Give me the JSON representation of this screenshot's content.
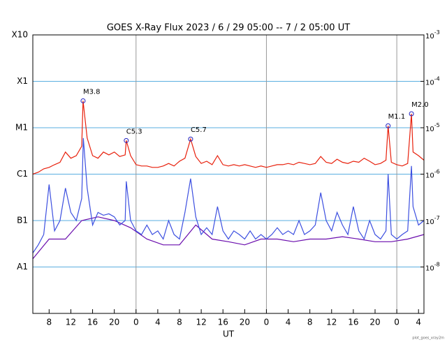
{
  "chart_data": {
    "type": "line",
    "title": "GOES X-Ray Flux   2023 /  6 / 29   05:00 --  7 /  2   05:00   UT",
    "x_label": "UT",
    "footer": "plot_goes_xray2m",
    "ylog": true,
    "ylim": [
      1e-09,
      0.001
    ],
    "yticks": [
      {
        "value": 0.001,
        "label": "X10"
      },
      {
        "value": 0.0001,
        "label": "X1"
      },
      {
        "value": 1e-05,
        "label": "M1"
      },
      {
        "value": 1e-06,
        "label": "C1"
      },
      {
        "value": 1e-07,
        "label": "B1"
      },
      {
        "value": 1e-08,
        "label": "A1"
      }
    ],
    "y2ticks": [
      {
        "value": 0.001,
        "label": "10",
        "exponent": "-3"
      },
      {
        "value": 0.0001,
        "label": "10",
        "exponent": "-4"
      },
      {
        "value": 1e-05,
        "label": "10",
        "exponent": "-5"
      },
      {
        "value": 1e-06,
        "label": "10",
        "exponent": "-6"
      },
      {
        "value": 1e-07,
        "label": "10",
        "exponent": "-7"
      },
      {
        "value": 1e-08,
        "label": "10",
        "exponent": "-8"
      }
    ],
    "grid": true,
    "grid_color": "#5aaee0",
    "xlim": [
      0,
      72
    ],
    "xticks": [
      {
        "value": 3,
        "label": "8"
      },
      {
        "value": 7,
        "label": "12"
      },
      {
        "value": 11,
        "label": "16"
      },
      {
        "value": 15,
        "label": "20"
      },
      {
        "value": 19,
        "label": "0"
      },
      {
        "value": 23,
        "label": "4"
      },
      {
        "value": 27,
        "label": "8"
      },
      {
        "value": 31,
        "label": "12"
      },
      {
        "value": 35,
        "label": "16"
      },
      {
        "value": 39,
        "label": "20"
      },
      {
        "value": 43,
        "label": "0"
      },
      {
        "value": 47,
        "label": "4"
      },
      {
        "value": 51,
        "label": "8"
      },
      {
        "value": 55,
        "label": "12"
      },
      {
        "value": 59,
        "label": "16"
      },
      {
        "value": 63,
        "label": "20"
      },
      {
        "value": 67,
        "label": "0"
      },
      {
        "value": 71,
        "label": "4"
      }
    ],
    "day_lines": [
      19,
      43,
      67
    ],
    "series": [
      {
        "color": "#6a0dad",
        "x": [
          0,
          3,
          6,
          9,
          12,
          15,
          18,
          21,
          24,
          27,
          30,
          33,
          36,
          39,
          42,
          45,
          48,
          51,
          54,
          57,
          60,
          63,
          66,
          69,
          72
        ],
        "values": [
          1.5e-08,
          4e-08,
          4e-08,
          1e-07,
          1.2e-07,
          1e-07,
          7e-08,
          4e-08,
          3e-08,
          3e-08,
          8e-08,
          4e-08,
          3.5e-08,
          3e-08,
          4e-08,
          4e-08,
          3.5e-08,
          4e-08,
          4e-08,
          4.5e-08,
          4e-08,
          3.5e-08,
          3.5e-08,
          4e-08,
          5e-08
        ]
      },
      {
        "color": "#3c4fe0",
        "x": [
          0,
          1,
          2,
          3,
          4,
          5,
          6,
          7,
          8,
          9,
          9.3,
          10,
          11,
          12,
          13,
          14,
          15,
          16,
          17,
          17.2,
          18,
          19,
          20,
          21,
          22,
          23,
          24,
          25,
          26,
          27,
          28,
          29.05,
          30,
          31,
          32,
          33,
          34,
          35,
          36,
          37,
          38,
          39,
          40,
          41,
          42,
          43,
          44,
          45,
          46,
          47,
          48,
          49,
          50,
          51,
          52,
          53,
          54,
          55,
          56,
          57,
          58,
          59,
          60,
          61,
          62,
          63,
          64,
          65,
          65.4,
          66,
          67,
          68,
          69,
          69.7,
          70,
          71,
          72
        ],
        "values": [
          2e-08,
          3e-08,
          5e-08,
          6e-07,
          6e-08,
          1e-07,
          5e-07,
          1.5e-07,
          1e-07,
          3e-07,
          6e-06,
          5e-07,
          8e-08,
          1.5e-07,
          1.3e-07,
          1.4e-07,
          1.2e-07,
          8e-08,
          1e-07,
          7e-07,
          1e-07,
          6e-08,
          5e-08,
          8e-08,
          5e-08,
          6e-08,
          4e-08,
          1e-07,
          5e-08,
          4e-08,
          1.5e-07,
          8e-07,
          1.2e-07,
          5e-08,
          7e-08,
          5e-08,
          2e-07,
          6e-08,
          4e-08,
          6e-08,
          5e-08,
          4e-08,
          6e-08,
          4e-08,
          5e-08,
          4e-08,
          5e-08,
          7e-08,
          5e-08,
          6e-08,
          5e-08,
          1e-07,
          5e-08,
          6e-08,
          8e-08,
          4e-07,
          1e-07,
          6e-08,
          1.5e-07,
          8e-08,
          5e-08,
          2e-07,
          6e-08,
          4e-08,
          1e-07,
          5e-08,
          4e-08,
          6e-08,
          1e-06,
          5e-08,
          4e-08,
          5e-08,
          6e-08,
          1.5e-06,
          2e-07,
          8e-08,
          1e-07
        ]
      },
      {
        "color": "#e8200c",
        "x": [
          0,
          1,
          2,
          3,
          4,
          5,
          6,
          7,
          8,
          9,
          9.25,
          10,
          11,
          12,
          13,
          14,
          15,
          16,
          17,
          17.2,
          18,
          19,
          20,
          21,
          22,
          23,
          24,
          25,
          26,
          27,
          28,
          29.05,
          30,
          31,
          32,
          33,
          34,
          35,
          36,
          37,
          38,
          39,
          40,
          41,
          42,
          43,
          44,
          45,
          46,
          47,
          48,
          49,
          50,
          51,
          52,
          53,
          54,
          55,
          56,
          57,
          58,
          59,
          60,
          61,
          62,
          63,
          64,
          65,
          65.4,
          66,
          67,
          68,
          69,
          69.7,
          70,
          71,
          72
        ],
        "values": [
          1e-06,
          1.1e-06,
          1.3e-06,
          1.4e-06,
          1.6e-06,
          1.8e-06,
          3e-06,
          2.2e-06,
          2.5e-06,
          4e-06,
          3.8e-05,
          6e-06,
          2.5e-06,
          2.2e-06,
          3e-06,
          2.6e-06,
          3e-06,
          2.4e-06,
          2.6e-06,
          5.3e-06,
          2.5e-06,
          1.6e-06,
          1.5e-06,
          1.5e-06,
          1.4e-06,
          1.4e-06,
          1.5e-06,
          1.7e-06,
          1.5e-06,
          1.9e-06,
          2.2e-06,
          5.7e-06,
          2.4e-06,
          1.7e-06,
          1.9e-06,
          1.6e-06,
          2.5e-06,
          1.6e-06,
          1.5e-06,
          1.6e-06,
          1.5e-06,
          1.6e-06,
          1.5e-06,
          1.4e-06,
          1.5e-06,
          1.4e-06,
          1.5e-06,
          1.6e-06,
          1.6e-06,
          1.7e-06,
          1.6e-06,
          1.8e-06,
          1.7e-06,
          1.6e-06,
          1.7e-06,
          2.4e-06,
          1.8e-06,
          1.7e-06,
          2.1e-06,
          1.8e-06,
          1.7e-06,
          1.9e-06,
          1.8e-06,
          2.2e-06,
          1.9e-06,
          1.6e-06,
          1.7e-06,
          2e-06,
          1.1e-05,
          1.8e-06,
          1.6e-06,
          1.5e-06,
          1.7e-06,
          2e-05,
          3e-06,
          2.5e-06,
          2e-06
        ]
      }
    ],
    "annotations": [
      {
        "label": "M3.8",
        "x": 9.25,
        "value": 3.8e-05
      },
      {
        "label": "C5.3",
        "x": 17.2,
        "value": 5.3e-06
      },
      {
        "label": "C5.7",
        "x": 29.05,
        "value": 5.7e-06
      },
      {
        "label": "M1.1",
        "x": 65.4,
        "value": 1.1e-05
      },
      {
        "label": "M2.0",
        "x": 69.7,
        "value": 2e-05
      }
    ]
  }
}
